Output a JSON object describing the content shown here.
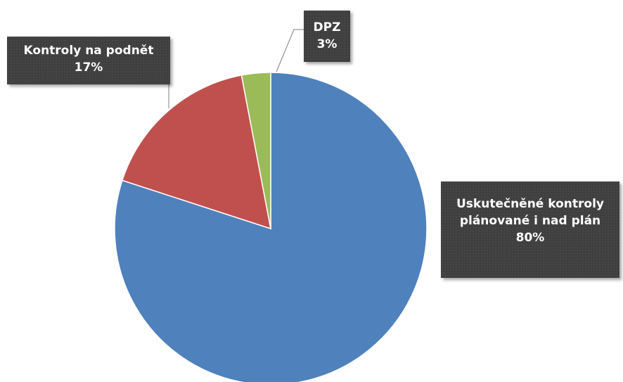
{
  "chart_data": {
    "type": "pie",
    "categories": [
      "Uskutečněné kontroly plánované i nad plán",
      "Kontroly na podnět",
      "DPZ"
    ],
    "values": [
      80,
      17,
      3
    ],
    "value_labels": [
      "80%",
      "17%",
      "3%"
    ],
    "colors": [
      "#4f81bd",
      "#c0504d",
      "#9bbb59"
    ]
  }
}
